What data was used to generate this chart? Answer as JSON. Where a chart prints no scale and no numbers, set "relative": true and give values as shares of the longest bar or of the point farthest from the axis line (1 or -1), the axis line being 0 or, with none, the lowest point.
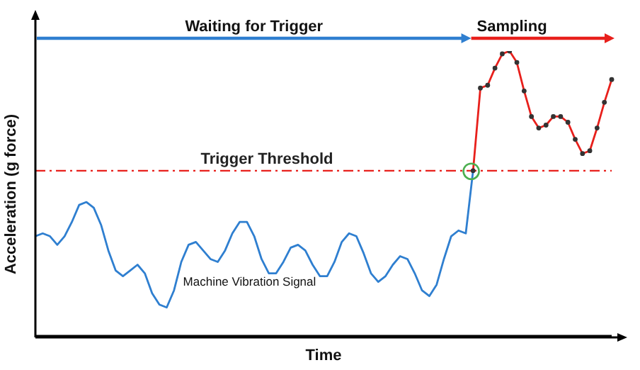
{
  "chart_data": {
    "type": "line",
    "relative": true,
    "xlabel": "Time",
    "ylabel": "Acceleration (g force)",
    "annotations": [
      "Waiting for Trigger",
      "Sampling"
    ],
    "categories": [
      null,
      null,
      null,
      null,
      null,
      null,
      null,
      null,
      null,
      null,
      null,
      null,
      null,
      null,
      null,
      null,
      null,
      null,
      null,
      null,
      null,
      null,
      null,
      null,
      null,
      null,
      null,
      null,
      null,
      null,
      null,
      null,
      null,
      null,
      null,
      null,
      null,
      null,
      null,
      null,
      null,
      null,
      null,
      null,
      null,
      null,
      null,
      null,
      null,
      null,
      null,
      null,
      null,
      null,
      null,
      null,
      null,
      null,
      null,
      null,
      null,
      null,
      null,
      null,
      null,
      null,
      null,
      null,
      null,
      null,
      null,
      null,
      null,
      null,
      null,
      null,
      null,
      null,
      null,
      null
    ],
    "series": [
      {
        "name": "Machine Vibration Signal",
        "color": "#2f7fd0",
        "marker": "none",
        "values": [
          0.35,
          0.36,
          0.35,
          0.32,
          0.35,
          0.4,
          0.46,
          0.47,
          0.45,
          0.39,
          0.3,
          0.23,
          0.21,
          0.23,
          0.25,
          0.22,
          0.15,
          0.11,
          0.1,
          0.16,
          0.26,
          0.32,
          0.33,
          0.3,
          0.27,
          0.26,
          0.3,
          0.36,
          0.4,
          0.4,
          0.35,
          0.27,
          0.22,
          0.22,
          0.26,
          0.31,
          0.32,
          0.3,
          0.25,
          0.21,
          0.21,
          0.26,
          0.33,
          0.36,
          0.35,
          0.29,
          0.22,
          0.19,
          0.21,
          0.25,
          0.28,
          0.27,
          0.22,
          0.16,
          0.14,
          0.18,
          0.27,
          0.35,
          0.37,
          0.36,
          0.58,
          null,
          null,
          null,
          null,
          null,
          null,
          null,
          null,
          null,
          null,
          null,
          null,
          null,
          null,
          null,
          null,
          null,
          null,
          null
        ]
      },
      {
        "color": "#e8201c",
        "marker": "circle",
        "values": [
          null,
          null,
          null,
          null,
          null,
          null,
          null,
          null,
          null,
          null,
          null,
          null,
          null,
          null,
          null,
          null,
          null,
          null,
          null,
          null,
          null,
          null,
          null,
          null,
          null,
          null,
          null,
          null,
          null,
          null,
          null,
          null,
          null,
          null,
          null,
          null,
          null,
          null,
          null,
          null,
          null,
          null,
          null,
          null,
          null,
          null,
          null,
          null,
          null,
          null,
          null,
          null,
          null,
          null,
          null,
          null,
          null,
          null,
          null,
          null,
          0.58,
          0.87,
          0.88,
          0.94,
          0.99,
          1,
          0.96,
          0.86,
          0.77,
          0.73,
          0.74,
          0.77,
          0.77,
          0.75,
          0.69,
          0.64,
          0.65,
          0.73,
          0.82,
          0.9
        ]
      }
    ],
    "ref_lines": [
      {
        "axis": "y",
        "value": 0.58,
        "label": "Trigger Threshold",
        "color": "#e8201c",
        "line_style": "dashed"
      }
    ],
    "line_style": "solid"
  }
}
